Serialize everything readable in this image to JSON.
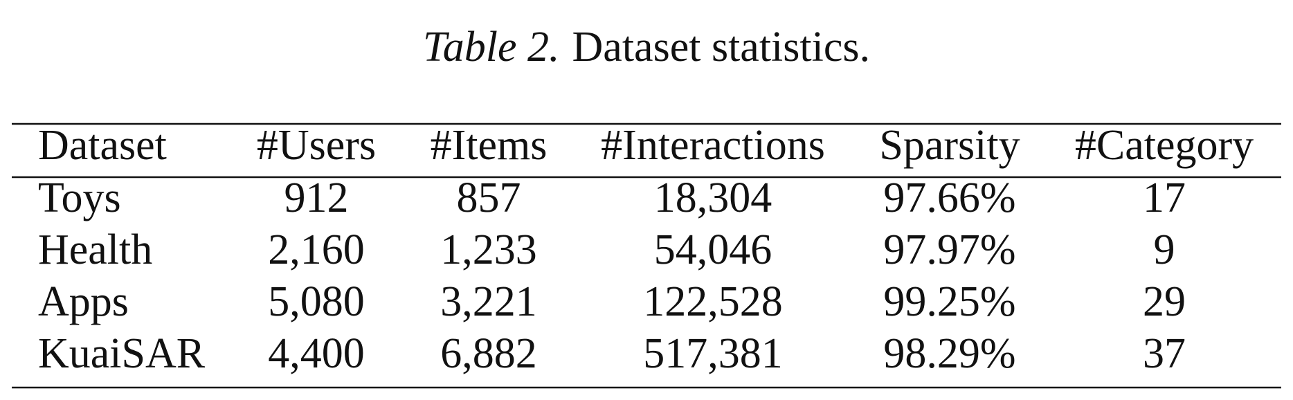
{
  "caption": {
    "label": "Table 2.",
    "text": "Dataset statistics."
  },
  "table": {
    "header": [
      "Dataset",
      "#Users",
      "#Items",
      "#Interactions",
      "Sparsity",
      "#Category"
    ],
    "rows": [
      [
        "Toys",
        "912",
        "857",
        "18,304",
        "97.66%",
        "17"
      ],
      [
        "Health",
        "2,160",
        "1,233",
        "54,046",
        "97.97%",
        "9"
      ],
      [
        "Apps",
        "5,080",
        "3,221",
        "122,528",
        "99.25%",
        "29"
      ],
      [
        "KuaiSAR",
        "4,400",
        "6,882",
        "517,381",
        "98.29%",
        "37"
      ]
    ]
  }
}
